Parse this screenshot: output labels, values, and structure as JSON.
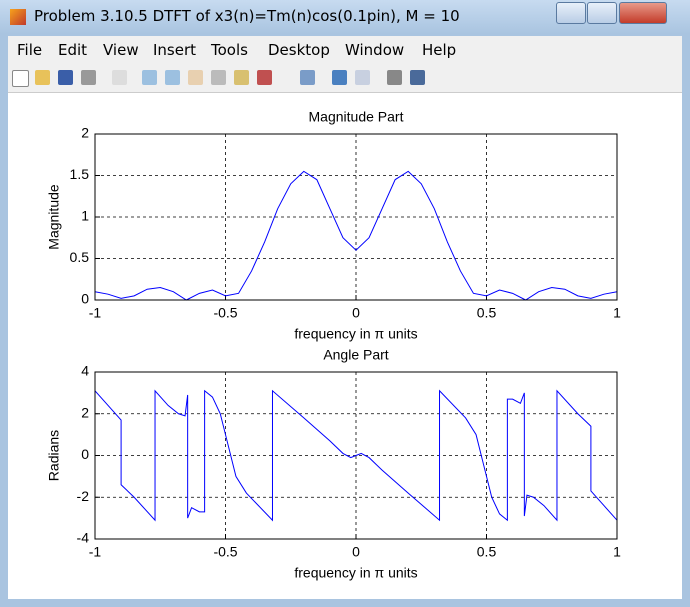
{
  "window_title": "Problem 3.10.5 DTFT of x3(n)=Tm(n)cos(0.1pin), M = 10",
  "menu": [
    "File",
    "Edit",
    "View",
    "Insert",
    "Tools",
    "Desktop",
    "Window",
    "Help"
  ],
  "chart_data": [
    {
      "type": "line",
      "title": "Magnitude Part",
      "xlabel": "frequency in π units",
      "ylabel": "Magnitude",
      "x": [
        -1,
        -0.95,
        -0.9,
        -0.85,
        -0.8,
        -0.75,
        -0.7,
        -0.65,
        -0.6,
        -0.55,
        -0.5,
        -0.45,
        -0.4,
        -0.35,
        -0.3,
        -0.25,
        -0.2,
        -0.15,
        -0.1,
        -0.05,
        0,
        0.05,
        0.1,
        0.15,
        0.2,
        0.25,
        0.3,
        0.35,
        0.4,
        0.45,
        0.5,
        0.55,
        0.6,
        0.65,
        0.7,
        0.75,
        0.8,
        0.85,
        0.9,
        0.95,
        1
      ],
      "values": [
        0.1,
        0.07,
        0.02,
        0.05,
        0.13,
        0.15,
        0.1,
        0,
        0.08,
        0.12,
        0.05,
        0.08,
        0.35,
        0.7,
        1.1,
        1.4,
        1.55,
        1.45,
        1.1,
        0.75,
        0.6,
        0.75,
        1.1,
        1.45,
        1.55,
        1.4,
        1.1,
        0.7,
        0.35,
        0.08,
        0.05,
        0.12,
        0.08,
        0,
        0.1,
        0.15,
        0.13,
        0.05,
        0.02,
        0.07,
        0.1
      ],
      "color": "#0000ff",
      "xlim": [
        -1,
        1
      ],
      "ylim": [
        0,
        2
      ],
      "xticks": [
        -1,
        -0.5,
        0,
        0.5,
        1
      ],
      "yticks": [
        0,
        0.5,
        1,
        1.5,
        2
      ],
      "grid": true
    },
    {
      "type": "line",
      "title": "Angle Part",
      "xlabel": "frequency in π units",
      "ylabel": "Radians",
      "x": [
        -1,
        -0.95,
        -0.9,
        -0.9,
        -0.85,
        -0.77,
        -0.77,
        -0.72,
        -0.68,
        -0.655,
        -0.645,
        -0.645,
        -0.63,
        -0.6,
        -0.58,
        -0.58,
        -0.55,
        -0.52,
        -0.49,
        -0.46,
        -0.42,
        -0.32,
        -0.32,
        -0.2,
        -0.1,
        -0.05,
        -0.02,
        0,
        0.02,
        0.05,
        0.1,
        0.2,
        0.32,
        0.32,
        0.42,
        0.46,
        0.49,
        0.52,
        0.55,
        0.58,
        0.58,
        0.6,
        0.63,
        0.645,
        0.645,
        0.655,
        0.68,
        0.72,
        0.77,
        0.77,
        0.85,
        0.9,
        0.9,
        0.95,
        1
      ],
      "values": [
        3.1,
        2.4,
        1.7,
        -1.4,
        -2.0,
        -3.1,
        3.1,
        2.4,
        2.0,
        1.9,
        2.9,
        -3.0,
        -2.5,
        -2.7,
        -2.7,
        3.1,
        2.8,
        2.0,
        0.5,
        -1.0,
        -1.8,
        -3.1,
        3.1,
        1.8,
        0.7,
        0.1,
        -0.1,
        0,
        0.1,
        -0.1,
        -0.7,
        -1.8,
        -3.1,
        3.1,
        1.8,
        1.0,
        -0.5,
        -2.0,
        -2.8,
        -3.1,
        2.7,
        2.7,
        2.5,
        3.0,
        -2.9,
        -1.9,
        -2.0,
        -2.4,
        -3.1,
        3.1,
        2.0,
        1.4,
        -1.7,
        -2.4,
        -3.1
      ],
      "color": "#0000ff",
      "xlim": [
        -1,
        1
      ],
      "ylim": [
        -4,
        4
      ],
      "xticks": [
        -1,
        -0.5,
        0,
        0.5,
        1
      ],
      "yticks": [
        -4,
        -2,
        0,
        2,
        4
      ],
      "grid": true
    }
  ]
}
